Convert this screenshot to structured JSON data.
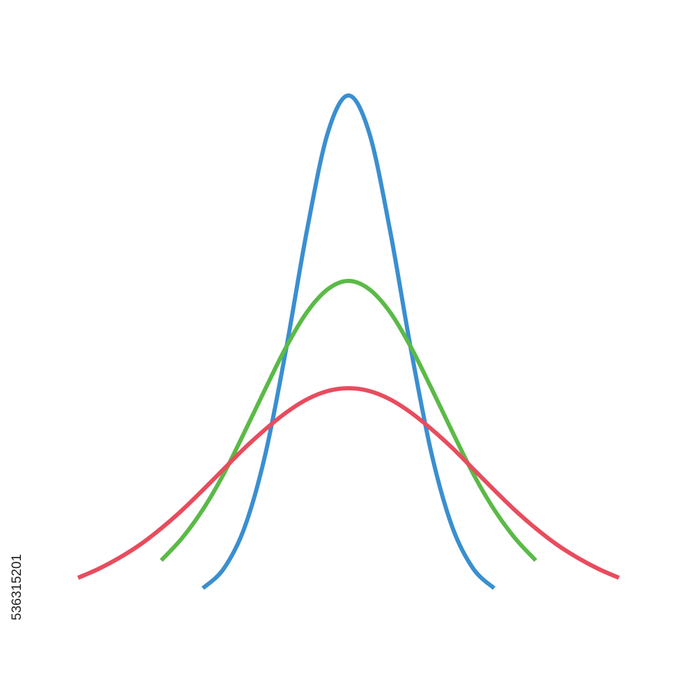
{
  "image_id": "536315201",
  "chart_data": {
    "type": "line",
    "x": [
      -390,
      -360,
      -330,
      -300,
      -270,
      -240,
      -210,
      -180,
      -150,
      -120,
      -90,
      -60,
      -30,
      0,
      30,
      60,
      90,
      120,
      150,
      180,
      210,
      240,
      270,
      300,
      330,
      360,
      390
    ],
    "series": [
      {
        "color": "#3a8fd0",
        "values": [
          null,
          null,
          null,
          null,
          null,
          null,
          16,
          44,
          103,
          208,
          359,
          529,
          669,
          723,
          669,
          529,
          359,
          208,
          103,
          44,
          16,
          null,
          null,
          null,
          null,
          null,
          null
        ]
      },
      {
        "color": "#5aba47",
        "values": [
          null,
          null,
          null,
          null,
          56,
          88,
          129,
          180,
          240,
          302,
          362,
          412,
          445,
          457,
          445,
          412,
          362,
          302,
          240,
          180,
          129,
          88,
          56,
          null,
          null,
          null,
          null
        ]
      },
      {
        "color": "#e84c5e",
        "values": [
          31,
          44,
          60,
          79,
          102,
          128,
          157,
          187,
          217,
          244,
          268,
          287,
          299,
          303,
          299,
          287,
          268,
          244,
          217,
          187,
          157,
          128,
          102,
          79,
          60,
          44,
          31
        ]
      }
    ],
    "xlim": [
      -390,
      390
    ],
    "ylim": [
      0,
      723
    ],
    "grid": false
  }
}
